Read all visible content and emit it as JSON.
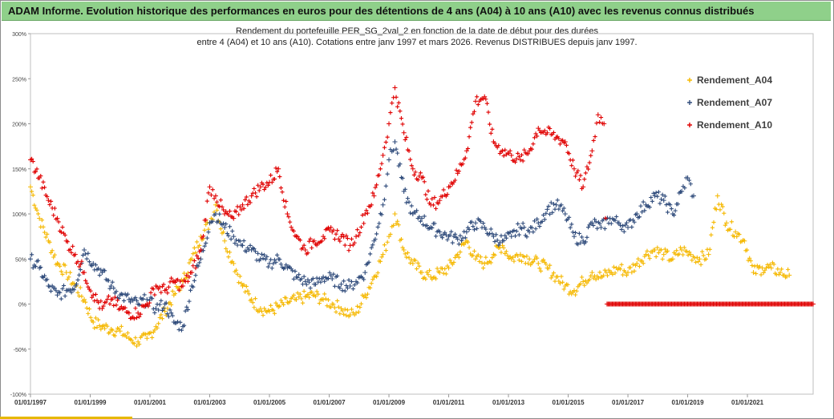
{
  "header": {
    "title": "ADAM Informe. Evolution historique des performances en euros pour des détentions de 4 ans (A04) à 10 ans (A10) avec les revenus connus distribués"
  },
  "chart_data": {
    "type": "scatter",
    "title_lines": [
      "Rendement du portefeuille PER_SG_2val_2 en fonction de la date de début pour des durées",
      "entre 4 (A04) et 10 ans (A10). Cotations entre janv 1997 et mars 2026. Revenus DISTRIBUES depuis janv 1997."
    ],
    "xlabel": "",
    "ylabel": "",
    "xlim": [
      1997.0,
      2023.2
    ],
    "ylim": [
      -100,
      300
    ],
    "y_ticks": [
      -100,
      -50,
      0,
      50,
      100,
      150,
      200,
      250,
      300
    ],
    "y_tick_labels": [
      "-100%",
      "-50%",
      "0%",
      "50%",
      "100%",
      "150%",
      "200%",
      "250%",
      "300%"
    ],
    "x_ticks": [
      1997,
      1999,
      2001,
      2003,
      2005,
      2007,
      2009,
      2011,
      2013,
      2015,
      2017,
      2019,
      2021
    ],
    "x_tick_labels": [
      "01/01/1997",
      "01/01/1999",
      "01/01/2001",
      "01/01/2003",
      "01/01/2005",
      "01/01/2007",
      "01/01/2009",
      "01/01/2011",
      "01/01/2013",
      "01/01/2015",
      "01/01/2017",
      "01/01/2019",
      "01/01/2021"
    ],
    "legend_position": "right",
    "series": [
      {
        "name": "Rendement_A04",
        "color": "#f5b800",
        "marker": "+",
        "points": [
          [
            1997.0,
            130
          ],
          [
            1997.3,
            95
          ],
          [
            1997.6,
            70
          ],
          [
            1997.9,
            45
          ],
          [
            1998.2,
            35
          ],
          [
            1998.5,
            20
          ],
          [
            1998.8,
            5
          ],
          [
            1999.1,
            -20
          ],
          [
            1999.4,
            -25
          ],
          [
            1999.7,
            -28
          ],
          [
            2000.0,
            -30
          ],
          [
            2000.3,
            -38
          ],
          [
            2000.6,
            -42
          ],
          [
            2000.9,
            -38
          ],
          [
            2001.2,
            -25
          ],
          [
            2001.5,
            -8
          ],
          [
            2001.8,
            10
          ],
          [
            2002.1,
            25
          ],
          [
            2002.4,
            50
          ],
          [
            2002.7,
            75
          ],
          [
            2003.0,
            90
          ],
          [
            2003.2,
            110
          ],
          [
            2003.5,
            70
          ],
          [
            2003.8,
            45
          ],
          [
            2004.1,
            20
          ],
          [
            2004.4,
            5
          ],
          [
            2004.7,
            -5
          ],
          [
            2005.0,
            -8
          ],
          [
            2005.3,
            -3
          ],
          [
            2005.6,
            2
          ],
          [
            2005.9,
            5
          ],
          [
            2006.2,
            8
          ],
          [
            2006.5,
            10
          ],
          [
            2006.8,
            5
          ],
          [
            2007.1,
            0
          ],
          [
            2007.4,
            -5
          ],
          [
            2007.7,
            -12
          ],
          [
            2007.9,
            -10
          ],
          [
            2008.2,
            10
          ],
          [
            2008.5,
            30
          ],
          [
            2008.8,
            55
          ],
          [
            2009.0,
            75
          ],
          [
            2009.2,
            100
          ],
          [
            2009.5,
            60
          ],
          [
            2009.8,
            45
          ],
          [
            2010.1,
            35
          ],
          [
            2010.4,
            30
          ],
          [
            2010.7,
            35
          ],
          [
            2011.0,
            40
          ],
          [
            2011.3,
            55
          ],
          [
            2011.6,
            70
          ],
          [
            2011.9,
            50
          ],
          [
            2012.2,
            45
          ],
          [
            2012.5,
            55
          ],
          [
            2012.8,
            65
          ],
          [
            2013.1,
            50
          ],
          [
            2013.4,
            55
          ],
          [
            2013.7,
            50
          ],
          [
            2014.0,
            45
          ],
          [
            2014.3,
            40
          ],
          [
            2014.6,
            30
          ],
          [
            2014.9,
            20
          ],
          [
            2015.2,
            15
          ],
          [
            2015.5,
            25
          ],
          [
            2015.8,
            35
          ],
          [
            2016.1,
            30
          ],
          [
            2016.4,
            35
          ],
          [
            2016.7,
            40
          ],
          [
            2017.0,
            35
          ],
          [
            2017.3,
            45
          ],
          [
            2017.6,
            55
          ],
          [
            2017.9,
            60
          ],
          [
            2018.2,
            55
          ],
          [
            2018.5,
            50
          ],
          [
            2018.8,
            60
          ],
          [
            2019.1,
            55
          ],
          [
            2019.4,
            50
          ],
          [
            2019.7,
            55
          ],
          [
            2020.0,
            120
          ],
          [
            2020.3,
            90
          ],
          [
            2020.6,
            80
          ],
          [
            2020.9,
            70
          ],
          [
            2021.2,
            35
          ],
          [
            2021.5,
            40
          ],
          [
            2021.8,
            40
          ],
          [
            2022.1,
            35
          ],
          [
            2022.4,
            32
          ]
        ]
      },
      {
        "name": "Rendement_A07",
        "color": "#2e4a7a",
        "marker": "+",
        "points": [
          [
            1997.0,
            50
          ],
          [
            1997.3,
            40
          ],
          [
            1997.6,
            20
          ],
          [
            1997.9,
            10
          ],
          [
            1998.2,
            15
          ],
          [
            1998.5,
            20
          ],
          [
            1998.8,
            60
          ],
          [
            1999.1,
            45
          ],
          [
            1999.4,
            35
          ],
          [
            1999.7,
            20
          ],
          [
            2000.0,
            10
          ],
          [
            2000.3,
            5
          ],
          [
            2000.6,
            0
          ],
          [
            2000.9,
            5
          ],
          [
            2001.2,
            -5
          ],
          [
            2001.5,
            0
          ],
          [
            2001.8,
            -20
          ],
          [
            2002.1,
            -25
          ],
          [
            2002.4,
            20
          ],
          [
            2002.7,
            50
          ],
          [
            2003.0,
            90
          ],
          [
            2003.2,
            100
          ],
          [
            2003.5,
            85
          ],
          [
            2003.8,
            75
          ],
          [
            2004.1,
            65
          ],
          [
            2004.4,
            60
          ],
          [
            2004.7,
            50
          ],
          [
            2005.0,
            45
          ],
          [
            2005.3,
            50
          ],
          [
            2005.6,
            40
          ],
          [
            2005.9,
            30
          ],
          [
            2006.2,
            25
          ],
          [
            2006.5,
            22
          ],
          [
            2006.8,
            30
          ],
          [
            2007.1,
            28
          ],
          [
            2007.4,
            22
          ],
          [
            2007.7,
            20
          ],
          [
            2007.9,
            25
          ],
          [
            2008.2,
            35
          ],
          [
            2008.5,
            70
          ],
          [
            2008.8,
            110
          ],
          [
            2009.0,
            160
          ],
          [
            2009.2,
            180
          ],
          [
            2009.5,
            125
          ],
          [
            2009.8,
            100
          ],
          [
            2010.1,
            95
          ],
          [
            2010.4,
            85
          ],
          [
            2010.7,
            80
          ],
          [
            2011.0,
            75
          ],
          [
            2011.3,
            72
          ],
          [
            2011.6,
            80
          ],
          [
            2011.9,
            90
          ],
          [
            2012.2,
            85
          ],
          [
            2012.5,
            75
          ],
          [
            2012.8,
            70
          ],
          [
            2013.1,
            75
          ],
          [
            2013.4,
            85
          ],
          [
            2013.7,
            80
          ],
          [
            2014.0,
            90
          ],
          [
            2014.3,
            105
          ],
          [
            2014.6,
            110
          ],
          [
            2014.9,
            100
          ],
          [
            2015.2,
            75
          ],
          [
            2015.5,
            70
          ],
          [
            2015.8,
            90
          ],
          [
            2016.1,
            85
          ],
          [
            2016.4,
            95
          ],
          [
            2016.7,
            90
          ],
          [
            2017.0,
            85
          ],
          [
            2017.3,
            100
          ],
          [
            2017.6,
            110
          ],
          [
            2017.9,
            120
          ],
          [
            2018.2,
            115
          ],
          [
            2018.5,
            100
          ],
          [
            2018.8,
            125
          ],
          [
            2019.0,
            140
          ],
          [
            2019.2,
            120
          ]
        ]
      },
      {
        "name": "Rendement_A10",
        "color": "#e00000",
        "marker": "+",
        "points": [
          [
            1997.0,
            160
          ],
          [
            1997.3,
            140
          ],
          [
            1997.6,
            115
          ],
          [
            1997.9,
            95
          ],
          [
            1998.2,
            70
          ],
          [
            1998.5,
            55
          ],
          [
            1998.8,
            35
          ],
          [
            1999.1,
            10
          ],
          [
            1999.4,
            -5
          ],
          [
            1999.7,
            5
          ],
          [
            2000.0,
            -5
          ],
          [
            2000.3,
            -10
          ],
          [
            2000.6,
            -10
          ],
          [
            2000.9,
            0
          ],
          [
            2001.2,
            20
          ],
          [
            2001.5,
            15
          ],
          [
            2001.8,
            25
          ],
          [
            2002.1,
            20
          ],
          [
            2002.4,
            35
          ],
          [
            2002.7,
            60
          ],
          [
            2003.0,
            130
          ],
          [
            2003.2,
            120
          ],
          [
            2003.5,
            100
          ],
          [
            2003.8,
            95
          ],
          [
            2004.1,
            110
          ],
          [
            2004.4,
            120
          ],
          [
            2004.7,
            130
          ],
          [
            2005.0,
            135
          ],
          [
            2005.3,
            150
          ],
          [
            2005.6,
            100
          ],
          [
            2005.9,
            75
          ],
          [
            2006.2,
            60
          ],
          [
            2006.5,
            70
          ],
          [
            2006.8,
            75
          ],
          [
            2007.1,
            80
          ],
          [
            2007.4,
            75
          ],
          [
            2007.7,
            65
          ],
          [
            2007.9,
            75
          ],
          [
            2008.2,
            100
          ],
          [
            2008.5,
            120
          ],
          [
            2008.8,
            165
          ],
          [
            2009.0,
            200
          ],
          [
            2009.2,
            240
          ],
          [
            2009.5,
            190
          ],
          [
            2009.8,
            150
          ],
          [
            2010.1,
            140
          ],
          [
            2010.4,
            110
          ],
          [
            2010.7,
            115
          ],
          [
            2011.0,
            130
          ],
          [
            2011.3,
            145
          ],
          [
            2011.6,
            170
          ],
          [
            2011.9,
            225
          ],
          [
            2012.2,
            230
          ],
          [
            2012.5,
            180
          ],
          [
            2012.8,
            170
          ],
          [
            2013.1,
            165
          ],
          [
            2013.4,
            160
          ],
          [
            2013.7,
            170
          ],
          [
            2014.0,
            195
          ],
          [
            2014.3,
            190
          ],
          [
            2014.6,
            185
          ],
          [
            2014.9,
            180
          ],
          [
            2015.2,
            150
          ],
          [
            2015.5,
            130
          ],
          [
            2015.8,
            170
          ],
          [
            2016.0,
            210
          ],
          [
            2016.2,
            200
          ],
          [
            2016.3,
            0
          ],
          [
            2017.0,
            0
          ],
          [
            2018.0,
            0
          ],
          [
            2019.0,
            0
          ],
          [
            2020.0,
            0
          ],
          [
            2021.0,
            0
          ],
          [
            2022.0,
            0
          ],
          [
            2023.2,
            0
          ]
        ]
      }
    ]
  }
}
